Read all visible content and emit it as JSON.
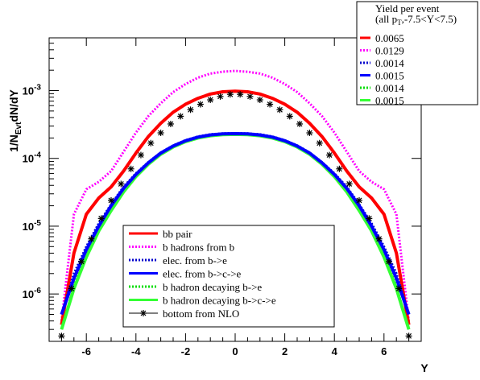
{
  "chart_data": {
    "type": "line",
    "xlabel": "Y",
    "ylabel": "1/N_{Evt}dN/dY",
    "xlim": [
      -7.5,
      7.5
    ],
    "ylim": [
      2e-07,
      0.006
    ],
    "yscale": "log",
    "x_ticks": [
      "-6",
      "-4",
      "-2",
      "0",
      "2",
      "4",
      "6"
    ],
    "y_ticks": [
      {
        "value": 1e-06,
        "label": "10-6"
      },
      {
        "value": 1e-05,
        "label": "10-5"
      },
      {
        "value": 0.0001,
        "label": "10-4"
      },
      {
        "value": 0.001,
        "label": "10-3"
      }
    ],
    "yield_title_line1": "Yield per event",
    "yield_title_line2": "(all p_T,-7.5<Y<7.5)",
    "series": [
      {
        "name": "bb pair",
        "color": "#ff0000",
        "style": "solid",
        "yield": "0.0065",
        "x": [
          -7,
          -6.5,
          -6,
          -5.5,
          -5,
          -4.5,
          -4,
          -3.5,
          -3,
          -2.5,
          -2,
          -1.5,
          -1,
          -0.5,
          0,
          0.5,
          1,
          1.5,
          2,
          2.5,
          3,
          3.5,
          4,
          4.5,
          5,
          5.5,
          6,
          6.5,
          7
        ],
        "y": [
          3.5e-07,
          4e-06,
          1.5e-05,
          2.6e-05,
          3.8e-05,
          6.5e-05,
          0.00012,
          0.00021,
          0.00033,
          0.00048,
          0.00063,
          0.00077,
          0.00089,
          0.00096,
          0.00098,
          0.00096,
          0.00089,
          0.00077,
          0.00063,
          0.00048,
          0.00033,
          0.00021,
          0.00012,
          6.5e-05,
          3.8e-05,
          2.6e-05,
          1.5e-05,
          4e-06,
          3.5e-07
        ]
      },
      {
        "name": "b hadrons from b",
        "color": "#ff00ff",
        "style": "dotted",
        "yield": "0.0129",
        "x": [
          -7,
          -6.5,
          -6,
          -5.5,
          -5,
          -4.5,
          -4,
          -3.5,
          -3,
          -2.5,
          -2,
          -1.5,
          -1,
          -0.5,
          0,
          0.5,
          1,
          1.5,
          2,
          2.5,
          3,
          3.5,
          4,
          4.5,
          5,
          5.5,
          6,
          6.5,
          7
        ],
        "y": [
          4e-07,
          1.5e-05,
          3.5e-05,
          4.5e-05,
          6.5e-05,
          0.000125,
          0.00024,
          0.00042,
          0.00065,
          0.00095,
          0.00125,
          0.00155,
          0.00178,
          0.0019,
          0.00195,
          0.0019,
          0.00178,
          0.00155,
          0.00125,
          0.00095,
          0.00065,
          0.00042,
          0.00024,
          0.000125,
          6.5e-05,
          4.5e-05,
          3.5e-05,
          1.5e-05,
          4e-07
        ]
      },
      {
        "name": "elec. from b->e",
        "color": "#0000cc",
        "style": "dotted",
        "yield": "0.0014",
        "x": [
          -7,
          -6.5,
          -6,
          -5.5,
          -5,
          -4.5,
          -4,
          -3.5,
          -3,
          -2.5,
          -2,
          -1.5,
          -1,
          -0.5,
          0,
          0.5,
          1,
          1.5,
          2,
          2.5,
          3,
          3.5,
          4,
          4.5,
          5,
          5.5,
          6,
          6.5,
          7
        ],
        "y": [
          5e-07,
          2e-06,
          5e-06,
          1.1e-05,
          2.1e-05,
          3.8e-05,
          6e-05,
          8.8e-05,
          0.000122,
          0.000155,
          0.000185,
          0.00021,
          0.000226,
          0.000233,
          0.000235,
          0.000233,
          0.000226,
          0.00021,
          0.000185,
          0.000155,
          0.000122,
          8.8e-05,
          6e-05,
          3.8e-05,
          2.1e-05,
          1.1e-05,
          5e-06,
          2e-06,
          5e-07
        ]
      },
      {
        "name": "elec. from b->c->e",
        "color": "#0000ff",
        "style": "solid",
        "yield": "0.0015",
        "x": [
          -7,
          -6.5,
          -6,
          -5.5,
          -5,
          -4.5,
          -4,
          -3.5,
          -3,
          -2.5,
          -2,
          -1.5,
          -1,
          -0.5,
          0,
          0.5,
          1,
          1.5,
          2,
          2.5,
          3,
          3.5,
          4,
          4.5,
          5,
          5.5,
          6,
          6.5,
          7
        ],
        "y": [
          5e-07,
          1.7e-06,
          4.5e-06,
          1e-05,
          2e-05,
          3.6e-05,
          5.8e-05,
          8.6e-05,
          0.00012,
          0.000152,
          0.000182,
          0.000206,
          0.000222,
          0.00023,
          0.000232,
          0.00023,
          0.000222,
          0.000206,
          0.000182,
          0.000152,
          0.00012,
          8.6e-05,
          5.8e-05,
          3.6e-05,
          2e-05,
          1e-05,
          4.5e-06,
          1.7e-06,
          5e-07
        ]
      },
      {
        "name": "b hadron decaying b->e",
        "color": "#00dd00",
        "style": "dotted",
        "yield": "0.0014",
        "x": [
          -7,
          -6.5,
          -6,
          -5.5,
          -5,
          -4.5,
          -4,
          -3.5,
          -3,
          -2.5,
          -2,
          -1.5,
          -1,
          -0.5,
          0,
          0.5,
          1,
          1.5,
          2,
          2.5,
          3,
          3.5,
          4,
          4.5,
          5,
          5.5,
          6,
          6.5,
          7
        ],
        "y": [
          3e-07,
          1.3e-06,
          3.8e-06,
          9e-06,
          1.8e-05,
          3.4e-05,
          5.6e-05,
          8.4e-05,
          0.000118,
          0.00015,
          0.00018,
          0.000204,
          0.00022,
          0.000228,
          0.00023,
          0.000228,
          0.00022,
          0.000204,
          0.00018,
          0.00015,
          0.000118,
          8.4e-05,
          5.6e-05,
          3.4e-05,
          1.8e-05,
          9e-06,
          3.8e-06,
          1.3e-06,
          3e-07
        ]
      },
      {
        "name": "b hadron decaying b->c->e",
        "color": "#33ff33",
        "style": "solid",
        "yield": "0.0015",
        "x": [
          -7,
          -6.5,
          -6,
          -5.5,
          -5,
          -4.5,
          -4,
          -3.5,
          -3,
          -2.5,
          -2,
          -1.5,
          -1,
          -0.5,
          0,
          0.5,
          1,
          1.5,
          2,
          2.5,
          3,
          3.5,
          4,
          4.5,
          5,
          5.5,
          6,
          6.5,
          7
        ],
        "y": [
          3e-07,
          1.2e-06,
          3.5e-06,
          8.5e-06,
          1.7e-05,
          3.2e-05,
          5.4e-05,
          8.2e-05,
          0.000115,
          0.000147,
          0.000177,
          0.0002,
          0.000216,
          0.000224,
          0.000226,
          0.000224,
          0.000216,
          0.0002,
          0.000177,
          0.000147,
          0.000115,
          8.2e-05,
          5.4e-05,
          3.2e-05,
          1.7e-05,
          8.5e-06,
          3.5e-06,
          1.2e-06,
          3e-07
        ]
      },
      {
        "name": "bottom from NLO",
        "color": "#000000",
        "style": "marker",
        "yield": "",
        "x": [
          -7,
          -6.6,
          -6.2,
          -5.8,
          -5.4,
          -5,
          -4.6,
          -4.2,
          -3.8,
          -3.4,
          -3,
          -2.6,
          -2.2,
          -1.8,
          -1.4,
          -1,
          -0.6,
          -0.2,
          0.2,
          0.6,
          1,
          1.4,
          1.8,
          2.2,
          2.6,
          3,
          3.4,
          3.8,
          4.2,
          4.6,
          5,
          5.4,
          5.8,
          6.2,
          6.6,
          7
        ],
        "y": [
          2.4e-07,
          1.2e-06,
          3e-06,
          6.5e-06,
          1.3e-05,
          2.4e-05,
          4.2e-05,
          7e-05,
          0.000112,
          0.000168,
          0.000238,
          0.000322,
          0.000418,
          0.000522,
          0.000628,
          0.00073,
          0.000818,
          0.00088,
          0.00088,
          0.000818,
          0.00073,
          0.000628,
          0.000522,
          0.000418,
          0.000322,
          0.000238,
          0.000168,
          0.000112,
          7e-05,
          4.2e-05,
          2.4e-05,
          1.3e-05,
          6.5e-06,
          3e-06,
          1.2e-06,
          2.4e-07
        ]
      }
    ]
  }
}
